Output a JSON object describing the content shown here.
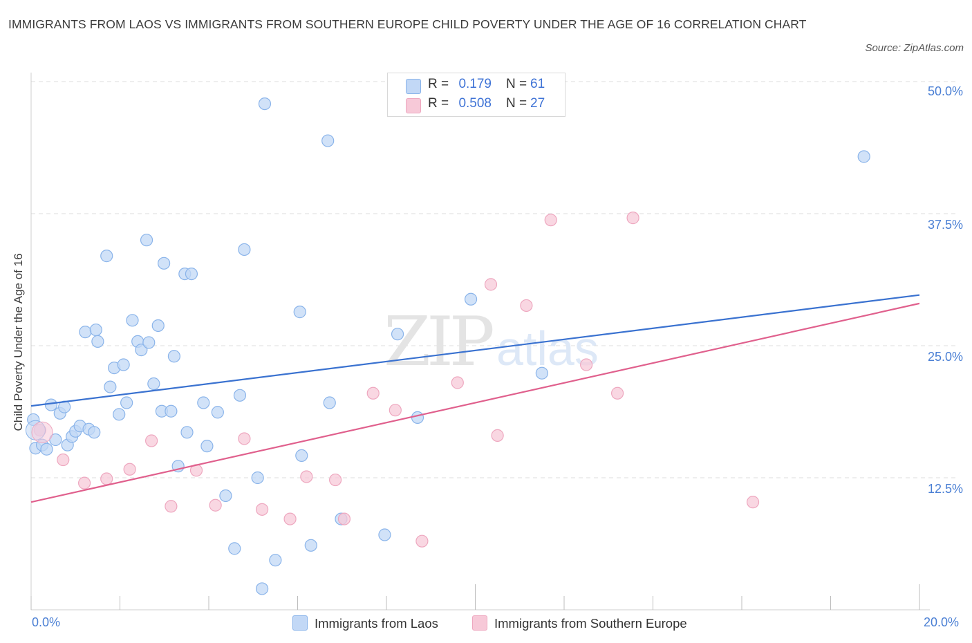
{
  "title": "IMMIGRANTS FROM LAOS VS IMMIGRANTS FROM SOUTHERN EUROPE CHILD POVERTY UNDER THE AGE OF 16 CORRELATION CHART",
  "source": "Source: ZipAtlas.com",
  "watermark": {
    "zip": "ZIP",
    "atlas": "atlas"
  },
  "legend": {
    "rows": [
      {
        "r_label": "R =",
        "r_value": "0.179",
        "n_label": "N =",
        "n_value": "61"
      },
      {
        "r_label": "R =",
        "r_value": "0.508",
        "n_label": "N =",
        "n_value": "27"
      }
    ]
  },
  "chart_data": {
    "type": "scatter",
    "title": "IMMIGRANTS FROM LAOS VS IMMIGRANTS FROM SOUTHERN EUROPE CHILD POVERTY UNDER THE AGE OF 16 CORRELATION CHART",
    "xlabel": "",
    "ylabel": "Child Poverty Under the Age of 16",
    "xlim": [
      0,
      20
    ],
    "ylim": [
      0,
      50
    ],
    "x_tick_labels": [
      "0.0%",
      "20.0%"
    ],
    "y_ticks": [
      12.5,
      25.0,
      37.5,
      50.0
    ],
    "y_tick_labels": [
      "12.5%",
      "25.0%",
      "37.5%",
      "50.0%"
    ],
    "grid": true,
    "series": [
      {
        "name": "Immigrants from Laos",
        "color": "#8ab4ea",
        "fill": "#c2d8f6",
        "line_color": "#3a72d0",
        "R": 0.179,
        "N": 61,
        "trend": {
          "x": [
            0,
            20
          ],
          "y": [
            19.3,
            29.8
          ]
        },
        "points": [
          [
            0.05,
            18.0
          ],
          [
            0.1,
            15.3
          ],
          [
            0.25,
            15.6
          ],
          [
            0.35,
            15.2
          ],
          [
            0.45,
            19.4
          ],
          [
            0.55,
            16.1
          ],
          [
            0.65,
            18.6
          ],
          [
            0.75,
            19.2
          ],
          [
            0.82,
            15.6
          ],
          [
            0.92,
            16.4
          ],
          [
            1.0,
            16.9
          ],
          [
            1.1,
            17.4
          ],
          [
            1.3,
            17.1
          ],
          [
            1.42,
            16.8
          ],
          [
            1.22,
            26.3
          ],
          [
            1.46,
            26.5
          ],
          [
            1.5,
            25.4
          ],
          [
            1.7,
            33.5
          ],
          [
            1.78,
            21.1
          ],
          [
            1.87,
            22.9
          ],
          [
            1.98,
            18.5
          ],
          [
            2.08,
            23.2
          ],
          [
            2.15,
            19.6
          ],
          [
            2.28,
            27.4
          ],
          [
            2.4,
            25.4
          ],
          [
            2.48,
            24.6
          ],
          [
            2.6,
            35.0
          ],
          [
            2.65,
            25.3
          ],
          [
            2.76,
            21.4
          ],
          [
            2.86,
            26.9
          ],
          [
            2.94,
            18.8
          ],
          [
            2.99,
            32.8
          ],
          [
            3.15,
            18.8
          ],
          [
            3.22,
            24.0
          ],
          [
            3.31,
            13.6
          ],
          [
            3.46,
            31.8
          ],
          [
            3.61,
            31.8
          ],
          [
            3.51,
            16.8
          ],
          [
            3.88,
            19.6
          ],
          [
            3.96,
            15.5
          ],
          [
            4.2,
            18.7
          ],
          [
            4.38,
            10.8
          ],
          [
            4.58,
            5.8
          ],
          [
            4.7,
            20.3
          ],
          [
            4.8,
            34.1
          ],
          [
            5.1,
            12.5
          ],
          [
            5.2,
            2.0
          ],
          [
            5.26,
            47.9
          ],
          [
            5.5,
            4.7
          ],
          [
            6.05,
            28.2
          ],
          [
            6.09,
            14.6
          ],
          [
            6.3,
            6.1
          ],
          [
            6.68,
            44.4
          ],
          [
            6.72,
            19.6
          ],
          [
            6.98,
            8.6
          ],
          [
            7.96,
            7.1
          ],
          [
            8.25,
            26.1
          ],
          [
            8.7,
            18.2
          ],
          [
            9.9,
            29.4
          ],
          [
            11.5,
            22.4
          ],
          [
            18.75,
            42.9
          ]
        ]
      },
      {
        "name": "Immigrants from Southern Europe",
        "color": "#eea7bf",
        "fill": "#f7c9d8",
        "line_color": "#e0608d",
        "R": 0.508,
        "N": 27,
        "trend": {
          "x": [
            0,
            20
          ],
          "y": [
            10.2,
            29.0
          ]
        },
        "points": [
          [
            0.2,
            17.0
          ],
          [
            0.72,
            14.2
          ],
          [
            1.2,
            12.0
          ],
          [
            1.7,
            12.4
          ],
          [
            2.22,
            13.3
          ],
          [
            2.71,
            16.0
          ],
          [
            3.15,
            9.8
          ],
          [
            3.72,
            13.2
          ],
          [
            4.15,
            9.9
          ],
          [
            4.8,
            16.2
          ],
          [
            5.2,
            9.5
          ],
          [
            5.83,
            8.6
          ],
          [
            6.2,
            12.6
          ],
          [
            6.85,
            12.3
          ],
          [
            7.05,
            8.6
          ],
          [
            7.7,
            20.5
          ],
          [
            8.2,
            18.9
          ],
          [
            8.8,
            6.5
          ],
          [
            9.6,
            21.5
          ],
          [
            10.35,
            30.8
          ],
          [
            10.5,
            16.5
          ],
          [
            11.15,
            28.8
          ],
          [
            11.7,
            36.9
          ],
          [
            12.5,
            23.2
          ],
          [
            13.2,
            20.5
          ],
          [
            13.55,
            37.1
          ],
          [
            16.25,
            10.2
          ]
        ]
      }
    ]
  }
}
